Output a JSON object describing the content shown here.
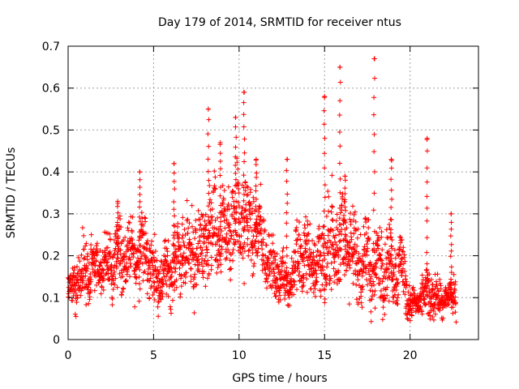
{
  "chart_data": {
    "type": "scatter",
    "title": "Day 179 of 2014, SRMTID for receiver ntus",
    "xlabel": "GPS time / hours",
    "ylabel": "SRMTID / TECUs",
    "xlim": [
      0,
      24
    ],
    "ylim": [
      0,
      0.7
    ],
    "grid": true,
    "marker": "+",
    "color": "#ff0000",
    "x_ticks": [
      0,
      5,
      10,
      15,
      20
    ],
    "x_tick_labels": [
      "0",
      "5",
      "10",
      "15",
      "20"
    ],
    "y_ticks": [
      0,
      0.1,
      0.2,
      0.3,
      0.4,
      0.5,
      0.6,
      0.7
    ],
    "y_tick_labels": [
      "0",
      "0.1",
      "0.2",
      "0.3",
      "0.4",
      "0.5",
      "0.6",
      "0.7"
    ],
    "envelope": {
      "description": "approximate local baseline/spread of the dense point cloud, sampled every 0.5 h",
      "x": [
        0,
        0.5,
        1,
        1.5,
        2,
        2.5,
        3,
        3.5,
        4,
        4.5,
        5,
        5.5,
        6,
        6.5,
        7,
        7.5,
        8,
        8.5,
        9,
        9.5,
        10,
        10.5,
        11,
        11.5,
        12,
        12.5,
        13,
        13.5,
        14,
        14.5,
        15,
        15.5,
        16,
        16.5,
        17,
        17.5,
        18,
        18.5,
        19,
        19.5,
        20,
        20.5,
        21,
        21.5,
        22,
        22.5
      ],
      "center": [
        0.11,
        0.14,
        0.16,
        0.17,
        0.17,
        0.18,
        0.2,
        0.2,
        0.2,
        0.22,
        0.15,
        0.15,
        0.17,
        0.2,
        0.21,
        0.2,
        0.22,
        0.25,
        0.24,
        0.27,
        0.29,
        0.27,
        0.26,
        0.22,
        0.16,
        0.15,
        0.14,
        0.2,
        0.19,
        0.18,
        0.2,
        0.22,
        0.24,
        0.22,
        0.18,
        0.18,
        0.17,
        0.18,
        0.17,
        0.18,
        0.08,
        0.09,
        0.11,
        0.1,
        0.09,
        0.11
      ],
      "spread": [
        0.03,
        0.05,
        0.06,
        0.05,
        0.05,
        0.07,
        0.07,
        0.06,
        0.07,
        0.08,
        0.06,
        0.05,
        0.06,
        0.07,
        0.08,
        0.08,
        0.09,
        0.1,
        0.08,
        0.1,
        0.1,
        0.09,
        0.08,
        0.07,
        0.05,
        0.05,
        0.05,
        0.08,
        0.08,
        0.07,
        0.09,
        0.1,
        0.1,
        0.09,
        0.07,
        0.08,
        0.08,
        0.08,
        0.07,
        0.07,
        0.03,
        0.03,
        0.05,
        0.04,
        0.03,
        0.04
      ]
    },
    "peaks": [
      {
        "x": 2.9,
        "y": 0.33
      },
      {
        "x": 4.2,
        "y": 0.4
      },
      {
        "x": 6.2,
        "y": 0.42
      },
      {
        "x": 8.2,
        "y": 0.55
      },
      {
        "x": 8.9,
        "y": 0.47
      },
      {
        "x": 9.8,
        "y": 0.53
      },
      {
        "x": 10.3,
        "y": 0.59
      },
      {
        "x": 11.0,
        "y": 0.43
      },
      {
        "x": 12.8,
        "y": 0.43
      },
      {
        "x": 15.0,
        "y": 0.58
      },
      {
        "x": 15.9,
        "y": 0.65
      },
      {
        "x": 16.2,
        "y": 0.39
      },
      {
        "x": 17.9,
        "y": 0.67
      },
      {
        "x": 18.9,
        "y": 0.43
      },
      {
        "x": 21.0,
        "y": 0.48
      },
      {
        "x": 22.4,
        "y": 0.3
      }
    ],
    "n_points": 2300
  }
}
